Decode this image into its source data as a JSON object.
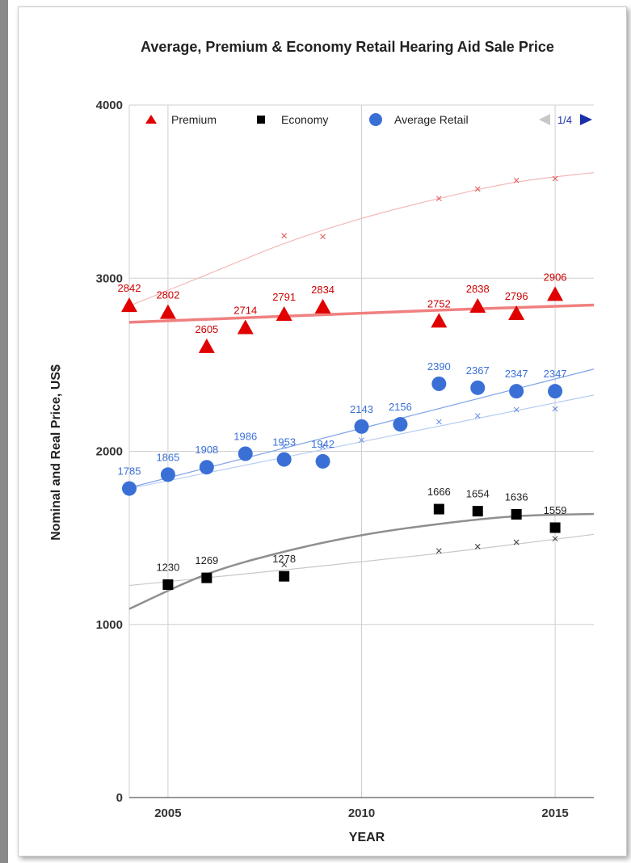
{
  "chart_data": {
    "type": "scatter",
    "title": "Average, Premium & Economy Retail Hearing Aid Sale Price",
    "xlabel": "YEAR",
    "ylabel": "Nominal and Real Price, US$",
    "xlim": [
      2004,
      2016
    ],
    "ylim": [
      0,
      4000
    ],
    "x_ticks": [
      "2005",
      "2010",
      "2015"
    ],
    "x_tick_values": [
      2005,
      2010,
      2015
    ],
    "y_ticks": [
      "0",
      "1000",
      "2000",
      "3000",
      "4000"
    ],
    "y_tick_values": [
      0,
      1000,
      2000,
      3000,
      4000
    ],
    "grid": true,
    "legend_position": "top",
    "legend_pager": "1/4",
    "series": [
      {
        "name": "Premium",
        "marker": "triangle",
        "color": "#e00000",
        "label_color": "#cc0000",
        "x": [
          2004,
          2005,
          2006,
          2007,
          2008,
          2009,
          2012,
          2013,
          2014,
          2015
        ],
        "values": [
          2842,
          2802,
          2605,
          2714,
          2791,
          2834,
          2752,
          2838,
          2796,
          2906
        ],
        "labels": [
          "2842",
          "2802",
          "2605",
          "2714",
          "2791",
          "2834",
          "2752",
          "2838",
          "2796",
          "2906"
        ],
        "trend_color": "#f08080",
        "trend": [
          [
            2004,
            2745
          ],
          [
            2008,
            2780
          ],
          [
            2012,
            2815
          ],
          [
            2016,
            2845
          ]
        ],
        "real_color": "#e05050",
        "real_x": [
          2008,
          2009,
          2012,
          2013,
          2014,
          2015
        ],
        "real_values": [
          3245,
          3240,
          3460,
          3515,
          3565,
          3575
        ],
        "real_trend_color": "#f4b8b8",
        "real_trend": [
          [
            2004,
            2840
          ],
          [
            2006,
            3020
          ],
          [
            2008,
            3200
          ],
          [
            2010,
            3345
          ],
          [
            2012,
            3460
          ],
          [
            2014,
            3555
          ],
          [
            2016,
            3610
          ]
        ]
      },
      {
        "name": "Economy",
        "marker": "square",
        "color": "#000000",
        "label_color": "#222222",
        "x": [
          2005,
          2006,
          2008,
          2012,
          2013,
          2014,
          2015
        ],
        "values": [
          1230,
          1269,
          1278,
          1666,
          1654,
          1636,
          1559
        ],
        "labels": [
          "1230",
          "1269",
          "1278",
          "1666",
          "1654",
          "1636",
          "1559"
        ],
        "trend_color": "#8f8f8f",
        "trend": [
          [
            2004,
            1090
          ],
          [
            2006,
            1290
          ],
          [
            2008,
            1420
          ],
          [
            2010,
            1515
          ],
          [
            2012,
            1580
          ],
          [
            2014,
            1625
          ],
          [
            2016,
            1638
          ]
        ],
        "real_color": "#333333",
        "real_x": [
          2008,
          2012,
          2013,
          2014,
          2015
        ],
        "real_values": [
          1345,
          1425,
          1450,
          1475,
          1495
        ],
        "real_trend_color": "#c8c8c8",
        "real_trend": [
          [
            2004,
            1225
          ],
          [
            2008,
            1315
          ],
          [
            2012,
            1410
          ],
          [
            2016,
            1520
          ]
        ]
      },
      {
        "name": "Average Retail",
        "marker": "circle",
        "color": "#3a6fd6",
        "label_color": "#3a6fd6",
        "x": [
          2004,
          2005,
          2006,
          2007,
          2008,
          2009,
          2010,
          2011,
          2012,
          2013,
          2014,
          2015
        ],
        "values": [
          1785,
          1865,
          1908,
          1986,
          1953,
          1942,
          2143,
          2156,
          2390,
          2367,
          2347,
          2347
        ],
        "labels": [
          "1785",
          "1865",
          "1908",
          "1986",
          "1953",
          "1942",
          "2143",
          "2156",
          "2390",
          "2367",
          "2347",
          "2347"
        ],
        "trend_color": "#7fa4e8",
        "trend": [
          [
            2004,
            1790
          ],
          [
            2016,
            2475
          ]
        ],
        "real_color": "#5a86dc",
        "real_x": [
          2008,
          2009,
          2010,
          2012,
          2013,
          2014,
          2015
        ],
        "real_values": [
          2030,
          2025,
          2065,
          2170,
          2205,
          2240,
          2245
        ],
        "real_trend_color": "#b8cdf2",
        "real_trend": [
          [
            2004,
            1785
          ],
          [
            2016,
            2325
          ]
        ]
      }
    ]
  }
}
